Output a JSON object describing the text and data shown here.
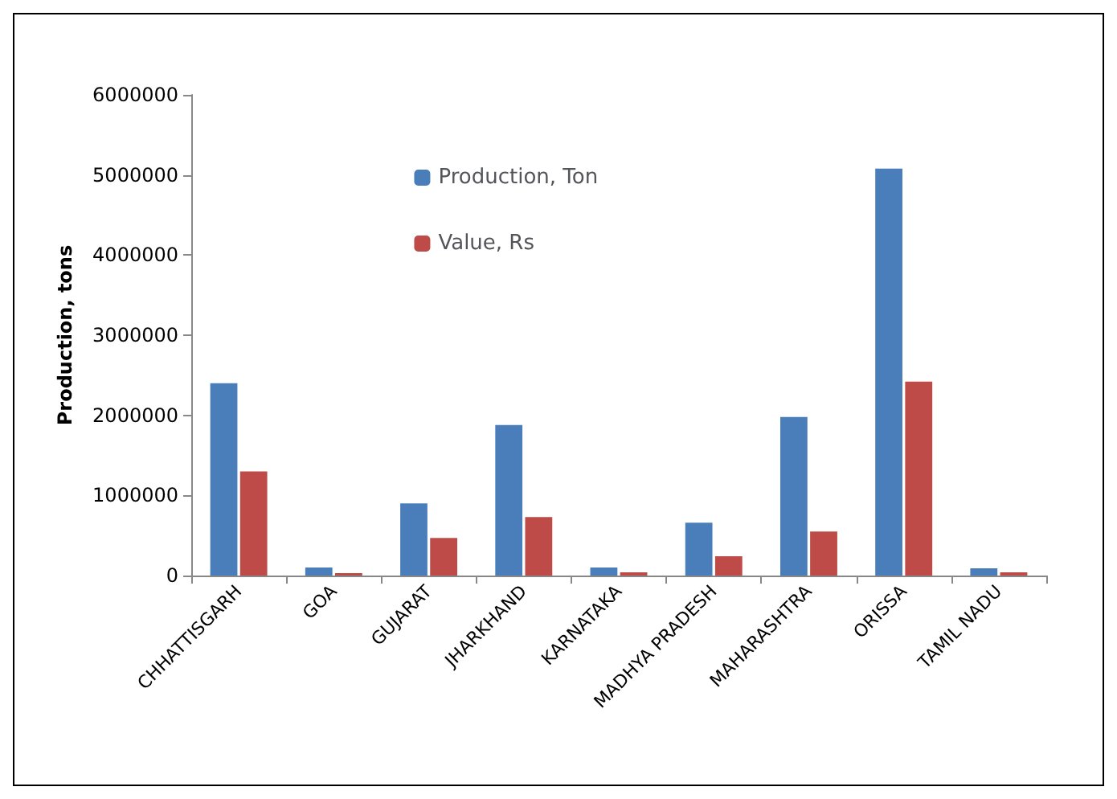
{
  "chart_data": {
    "type": "bar",
    "ylabel": "Production, tons",
    "categories": [
      "CHHATTISGARH",
      "GOA",
      "GUJARAT",
      "JHARKHAND",
      "KARNATAKA",
      "MADHYA PRADESH",
      "MAHARASHTRA",
      "ORISSA",
      "TAMIL NADU"
    ],
    "series": [
      {
        "name": "Production, Ton",
        "color": "#4a7ebb",
        "values": [
          2400000,
          100000,
          900000,
          1880000,
          100000,
          660000,
          1980000,
          5080000,
          90000
        ]
      },
      {
        "name": "Value, Rs",
        "color": "#be4b48",
        "values": [
          1300000,
          30000,
          470000,
          730000,
          40000,
          240000,
          550000,
          2420000,
          40000
        ]
      }
    ],
    "ylim": [
      0,
      6000000
    ],
    "yticks": [
      0,
      1000000,
      2000000,
      3000000,
      4000000,
      5000000,
      6000000
    ],
    "grid": false,
    "legend": "top center"
  }
}
